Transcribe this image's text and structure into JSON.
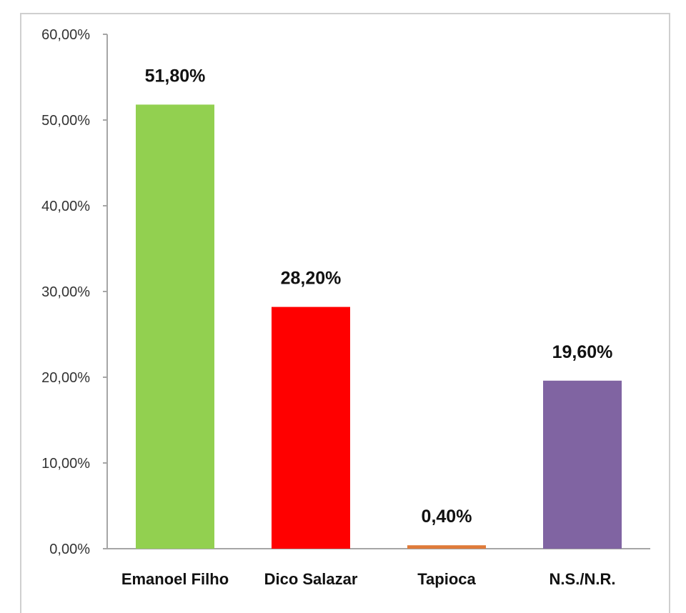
{
  "chart_data": {
    "type": "bar",
    "categories": [
      "Emanoel Filho",
      "Dico Salazar",
      "Tapioca",
      "N.S./N.R."
    ],
    "values": [
      51.8,
      28.2,
      0.4,
      19.6
    ],
    "data_labels": [
      "51,80%",
      "28,20%",
      "0,40%",
      "19,60%"
    ],
    "colors": [
      "#92d050",
      "#ff0000",
      "#e07b39",
      "#8064a2"
    ],
    "ylim": [
      0,
      60
    ],
    "yticks": [
      0,
      10,
      20,
      30,
      40,
      50,
      60
    ],
    "ytick_labels": [
      "0,00%",
      "10,00%",
      "20,00%",
      "30,00%",
      "40,00%",
      "50,00%",
      "60,00%"
    ],
    "grid": false,
    "legend": "none"
  }
}
